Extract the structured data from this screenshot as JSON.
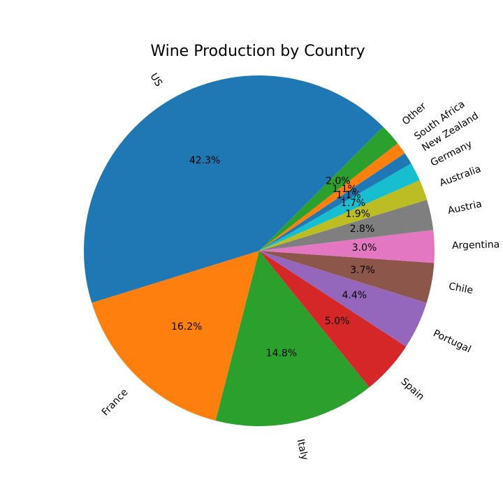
{
  "chart_data": {
    "type": "pie",
    "title": "Wine Production by Country",
    "categories": [
      "US",
      "France",
      "Italy",
      "Spain",
      "Portugal",
      "Chile",
      "Argentina",
      "Austria",
      "Australia",
      "Germany",
      "New Zealand",
      "South Africa",
      "Other"
    ],
    "values": [
      42.3,
      16.2,
      14.8,
      5.0,
      4.4,
      3.7,
      3.0,
      2.8,
      1.9,
      1.7,
      1.1,
      1.1,
      2.0
    ],
    "value_labels": [
      "42.3%",
      "16.2%",
      "14.8%",
      "5.0%",
      "4.4%",
      "3.7%",
      "3.0%",
      "2.8%",
      "1.9%",
      "1.7%",
      "1.1%",
      "1.1%",
      "2.0%"
    ],
    "colors": [
      "#1f77b4",
      "#ff7f0e",
      "#2ca02c",
      "#d62728",
      "#9467bd",
      "#8c564b",
      "#e377c2",
      "#7f7f7f",
      "#bcbd22",
      "#17becf",
      "#1f77b4",
      "#ff7f0e",
      "#2ca02c"
    ],
    "start_angle_deg": 45,
    "direction": "counterclockwise"
  }
}
